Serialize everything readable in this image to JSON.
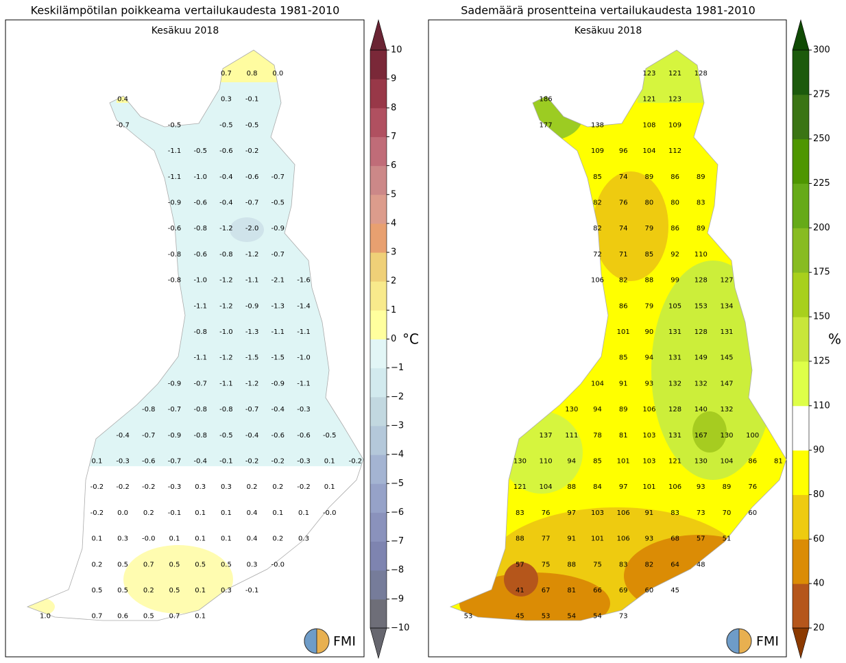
{
  "panels": [
    {
      "title": "Keskilämpötilan poikkeama vertailukaudesta 1981-2010",
      "subtitle": "Kesäkuu 2018",
      "unit": "°C",
      "logo": "FMI",
      "colorbar": {
        "ticks": [
          {
            "value": -10,
            "label": "−10"
          },
          {
            "value": -9,
            "label": "−9"
          },
          {
            "value": -8,
            "label": "−8"
          },
          {
            "value": -7,
            "label": "−7"
          },
          {
            "value": -6,
            "label": "−6"
          },
          {
            "value": -5,
            "label": "−5"
          },
          {
            "value": -4,
            "label": "−4"
          },
          {
            "value": -3,
            "label": "−3"
          },
          {
            "value": -2,
            "label": "−2"
          },
          {
            "value": -1,
            "label": "−1"
          },
          0,
          1,
          2,
          3,
          4,
          5,
          6,
          7,
          8,
          9,
          10
        ],
        "colors": [
          "#6e6e78",
          "#767c9a",
          "#7e84b0",
          "#8a92bc",
          "#96a2c8",
          "#a4b4d2",
          "#b4c8da",
          "#c2d8e0",
          "#d2eaee",
          "#e2f6f6",
          "#ffff9e",
          "#f8ea8c",
          "#efd078",
          "#e8a070",
          "#dc9c8c",
          "#cc8888",
          "#c06c78",
          "#b05060",
          "#983848",
          "#7a2838"
        ],
        "under": "#66666e",
        "over": "#6a2434"
      },
      "stations": [
        [
          null,
          null,
          null,
          null,
          null,
          null,
          null,
          "0.7",
          "0.8",
          "0.0",
          null,
          null,
          null
        ],
        [
          null,
          null,
          null,
          "0.4",
          null,
          null,
          null,
          "0.3",
          "-0.1",
          null,
          null,
          null,
          null
        ],
        [
          null,
          null,
          null,
          "-0.7",
          null,
          "-0.5",
          null,
          "-0.5",
          "-0.5",
          null,
          null,
          null,
          null
        ],
        [
          null,
          null,
          null,
          null,
          null,
          "-1.1",
          "-0.5",
          "-0.6",
          "-0.2",
          null,
          null,
          null,
          null
        ],
        [
          null,
          null,
          null,
          null,
          null,
          "-1.1",
          "-1.0",
          "-0.4",
          "-0.6",
          "-0.7",
          null,
          null,
          null
        ],
        [
          null,
          null,
          null,
          null,
          null,
          "-0.9",
          "-0.6",
          "-0.4",
          "-0.7",
          "-0.5",
          null,
          null,
          null
        ],
        [
          null,
          null,
          null,
          null,
          null,
          "-0.6",
          "-0.8",
          "-1.2",
          "-2.0",
          "-0.9",
          null,
          null,
          null
        ],
        [
          null,
          null,
          null,
          null,
          null,
          "-0.8",
          "-0.6",
          "-0.8",
          "-1.2",
          "-0.7",
          null,
          null,
          null
        ],
        [
          null,
          null,
          null,
          null,
          null,
          "-0.8",
          "-1.0",
          "-1.2",
          "-1.1",
          "-2.1",
          "-1.6",
          null,
          null
        ],
        [
          null,
          null,
          null,
          null,
          null,
          null,
          "-1.1",
          "-1.2",
          "-0.9",
          "-1.3",
          "-1.4",
          null,
          null
        ],
        [
          null,
          null,
          null,
          null,
          null,
          null,
          "-0.8",
          "-1.0",
          "-1.3",
          "-1.1",
          "-1.1",
          null,
          null
        ],
        [
          null,
          null,
          null,
          null,
          null,
          null,
          "-1.1",
          "-1.2",
          "-1.5",
          "-1.5",
          "-1.0",
          null,
          null
        ],
        [
          null,
          null,
          null,
          null,
          null,
          "-0.9",
          "-0.7",
          "-1.1",
          "-1.2",
          "-0.9",
          "-1.1",
          null,
          null
        ],
        [
          null,
          null,
          null,
          null,
          "-0.8",
          "-0.7",
          "-0.8",
          "-0.8",
          "-0.7",
          "-0.4",
          "-0.3",
          null,
          null
        ],
        [
          null,
          null,
          null,
          "-0.4",
          "-0.7",
          "-0.9",
          "-0.8",
          "-0.5",
          "-0.4",
          "-0.6",
          "-0.6",
          "-0.5",
          null
        ],
        [
          null,
          null,
          "0.1",
          "-0.3",
          "-0.6",
          "-0.7",
          "-0.4",
          "-0.1",
          "-0.2",
          "-0.2",
          "-0.3",
          "0.1",
          "-0.2"
        ],
        [
          null,
          null,
          "-0.2",
          "-0.2",
          "-0.2",
          "-0.3",
          "0.3",
          "0.3",
          "0.2",
          "0.2",
          "-0.2",
          "0.1",
          null
        ],
        [
          null,
          null,
          "-0.2",
          "0.0",
          "0.2",
          "-0.1",
          "0.1",
          "0.1",
          "0.4",
          "0.1",
          "0.1",
          "-0.0",
          null
        ],
        [
          null,
          null,
          "0.1",
          "0.3",
          "-0.0",
          "0.1",
          "0.1",
          "0.1",
          "0.4",
          "0.2",
          "0.3",
          null,
          null
        ],
        [
          null,
          null,
          "0.2",
          "0.5",
          "0.7",
          "0.5",
          "0.5",
          "0.5",
          "0.3",
          "-0.0",
          null,
          null,
          null
        ],
        [
          null,
          null,
          "0.5",
          "0.5",
          "0.2",
          "0.5",
          "0.1",
          "0.3",
          "-0.1",
          null,
          null,
          null,
          null
        ],
        [
          "1.0",
          null,
          "0.7",
          "0.6",
          "0.5",
          "0.7",
          "0.1",
          null,
          null,
          null,
          null,
          null,
          null
        ]
      ]
    },
    {
      "title": "Sademäärä prosentteina vertailukaudesta 1981-2010",
      "subtitle": "Kesäkuu 2018",
      "unit": "%",
      "logo": "FMI",
      "colorbar": {
        "ticks": [
          20,
          40,
          60,
          80,
          90,
          110,
          125,
          150,
          175,
          200,
          225,
          250,
          275,
          300
        ],
        "colors": [
          "#b5561b",
          "#db8c05",
          "#eecb10",
          "#ffff00",
          "#ffffff",
          "#deff48",
          "#c8e63a",
          "#a8d01c",
          "#88bc22",
          "#66aa18",
          "#4e9600",
          "#3a7414",
          "#1c5a0c"
        ],
        "under": "#8c3a00",
        "over": "#104a04"
      },
      "stations": [
        [
          null,
          null,
          null,
          null,
          null,
          null,
          null,
          "123",
          "121",
          "128",
          null,
          null,
          null
        ],
        [
          null,
          null,
          null,
          "186",
          null,
          null,
          null,
          "121",
          "123",
          null,
          null,
          null,
          null
        ],
        [
          null,
          null,
          null,
          "177",
          null,
          "138",
          null,
          "108",
          "109",
          null,
          null,
          null,
          null
        ],
        [
          null,
          null,
          null,
          null,
          null,
          "109",
          "96",
          "104",
          "112",
          null,
          null,
          null,
          null
        ],
        [
          null,
          null,
          null,
          null,
          null,
          "85",
          "74",
          "89",
          "86",
          "89",
          null,
          null,
          null
        ],
        [
          null,
          null,
          null,
          null,
          null,
          "82",
          "76",
          "80",
          "80",
          "83",
          null,
          null,
          null
        ],
        [
          null,
          null,
          null,
          null,
          null,
          "82",
          "74",
          "79",
          "86",
          "89",
          null,
          null,
          null
        ],
        [
          null,
          null,
          null,
          null,
          null,
          "72",
          "71",
          "85",
          "92",
          "110",
          null,
          null,
          null
        ],
        [
          null,
          null,
          null,
          null,
          null,
          "106",
          "82",
          "88",
          "99",
          "128",
          "127",
          null,
          null
        ],
        [
          null,
          null,
          null,
          null,
          null,
          null,
          "86",
          "79",
          "105",
          "153",
          "134",
          null,
          null
        ],
        [
          null,
          null,
          null,
          null,
          null,
          null,
          "101",
          "90",
          "131",
          "128",
          "131",
          null,
          null
        ],
        [
          null,
          null,
          null,
          null,
          null,
          null,
          "85",
          "94",
          "131",
          "149",
          "145",
          null,
          null
        ],
        [
          null,
          null,
          null,
          null,
          null,
          "104",
          "91",
          "93",
          "132",
          "132",
          "147",
          null,
          null
        ],
        [
          null,
          null,
          null,
          null,
          "130",
          "94",
          "89",
          "106",
          "128",
          "140",
          "132",
          null,
          null
        ],
        [
          null,
          null,
          null,
          "137",
          "111",
          "78",
          "81",
          "103",
          "131",
          "167",
          "130",
          "100",
          null
        ],
        [
          null,
          null,
          "130",
          "110",
          "94",
          "85",
          "101",
          "103",
          "121",
          "130",
          "104",
          "86",
          "81"
        ],
        [
          null,
          null,
          "121",
          "104",
          "88",
          "84",
          "97",
          "101",
          "106",
          "93",
          "89",
          "76",
          null
        ],
        [
          null,
          null,
          "83",
          "76",
          "97",
          "103",
          "106",
          "91",
          "83",
          "73",
          "70",
          "60",
          null
        ],
        [
          null,
          null,
          "88",
          "77",
          "91",
          "101",
          "106",
          "93",
          "68",
          "57",
          "51",
          null,
          null
        ],
        [
          null,
          null,
          "57",
          "75",
          "88",
          "75",
          "83",
          "82",
          "64",
          "48",
          null,
          null,
          null
        ],
        [
          null,
          null,
          "41",
          "67",
          "81",
          "66",
          "69",
          "60",
          "45",
          null,
          null,
          null,
          null
        ],
        [
          "53",
          null,
          "45",
          "53",
          "54",
          "54",
          "73",
          null,
          null,
          null,
          null,
          null,
          null
        ]
      ]
    }
  ]
}
